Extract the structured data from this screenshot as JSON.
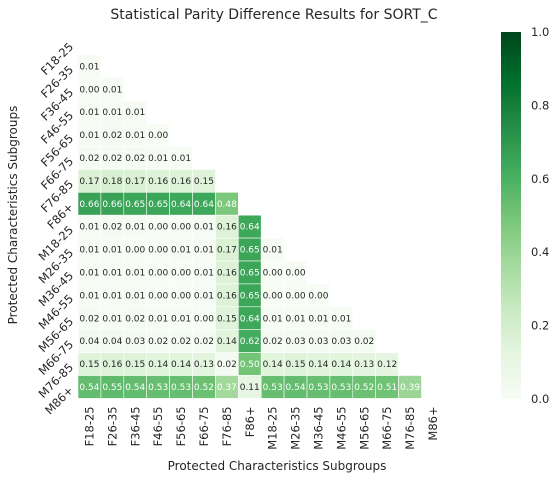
{
  "chart_data": {
    "type": "heatmap",
    "title": "Statistical Parity Difference Results for SORT_C",
    "xlabel": "Protected Characteristics Subgroups",
    "ylabel": "Protected Characteristics Subgroups",
    "labels": [
      "F18-25",
      "F26-35",
      "F36-45",
      "F46-55",
      "F56-65",
      "F66-75",
      "F76-85",
      "F86+",
      "M18-25",
      "M26-35",
      "M36-45",
      "M46-55",
      "M56-65",
      "M66-75",
      "M76-85",
      "M86+"
    ],
    "mask": "upper triangle including diagonal",
    "colormap": "Greens",
    "vmin": 0,
    "vmax": 1,
    "colorbar_ticks": [
      "0.0",
      "0.2",
      "0.4",
      "0.6",
      "0.8",
      "1.0"
    ],
    "rows": [
      [],
      [
        "0.01"
      ],
      [
        "0.00",
        "0.01"
      ],
      [
        "0.01",
        "0.01",
        "0.01"
      ],
      [
        "0.01",
        "0.02",
        "0.01",
        "0.00"
      ],
      [
        "0.02",
        "0.02",
        "0.02",
        "0.01",
        "0.01"
      ],
      [
        "0.17",
        "0.18",
        "0.17",
        "0.16",
        "0.16",
        "0.15"
      ],
      [
        "0.66",
        "0.66",
        "0.65",
        "0.65",
        "0.64",
        "0.64",
        "0.48"
      ],
      [
        "0.01",
        "0.02",
        "0.01",
        "0.00",
        "0.00",
        "0.01",
        "0.16",
        "0.64"
      ],
      [
        "0.01",
        "0.01",
        "0.00",
        "0.00",
        "0.01",
        "0.01",
        "0.17",
        "0.65",
        "0.01"
      ],
      [
        "0.01",
        "0.01",
        "0.01",
        "0.00",
        "0.00",
        "0.01",
        "0.16",
        "0.65",
        "0.00",
        "0.00"
      ],
      [
        "0.01",
        "0.01",
        "0.01",
        "0.00",
        "0.00",
        "0.01",
        "0.16",
        "0.65",
        "0.00",
        "0.00",
        "0.00"
      ],
      [
        "0.02",
        "0.01",
        "0.02",
        "0.01",
        "0.01",
        "0.00",
        "0.15",
        "0.64",
        "0.01",
        "0.01",
        "0.01",
        "0.01"
      ],
      [
        "0.04",
        "0.04",
        "0.03",
        "0.02",
        "0.02",
        "0.02",
        "0.14",
        "0.62",
        "0.02",
        "0.03",
        "0.03",
        "0.03",
        "0.02"
      ],
      [
        "0.15",
        "0.16",
        "0.15",
        "0.14",
        "0.14",
        "0.13",
        "0.02",
        "0.50",
        "0.14",
        "0.15",
        "0.14",
        "0.14",
        "0.13",
        "0.12"
      ],
      [
        "0.54",
        "0.55",
        "0.54",
        "0.53",
        "0.53",
        "0.52",
        "0.37",
        "0.11",
        "0.53",
        "0.54",
        "0.53",
        "0.53",
        "0.52",
        "0.51",
        "0.39"
      ]
    ]
  }
}
